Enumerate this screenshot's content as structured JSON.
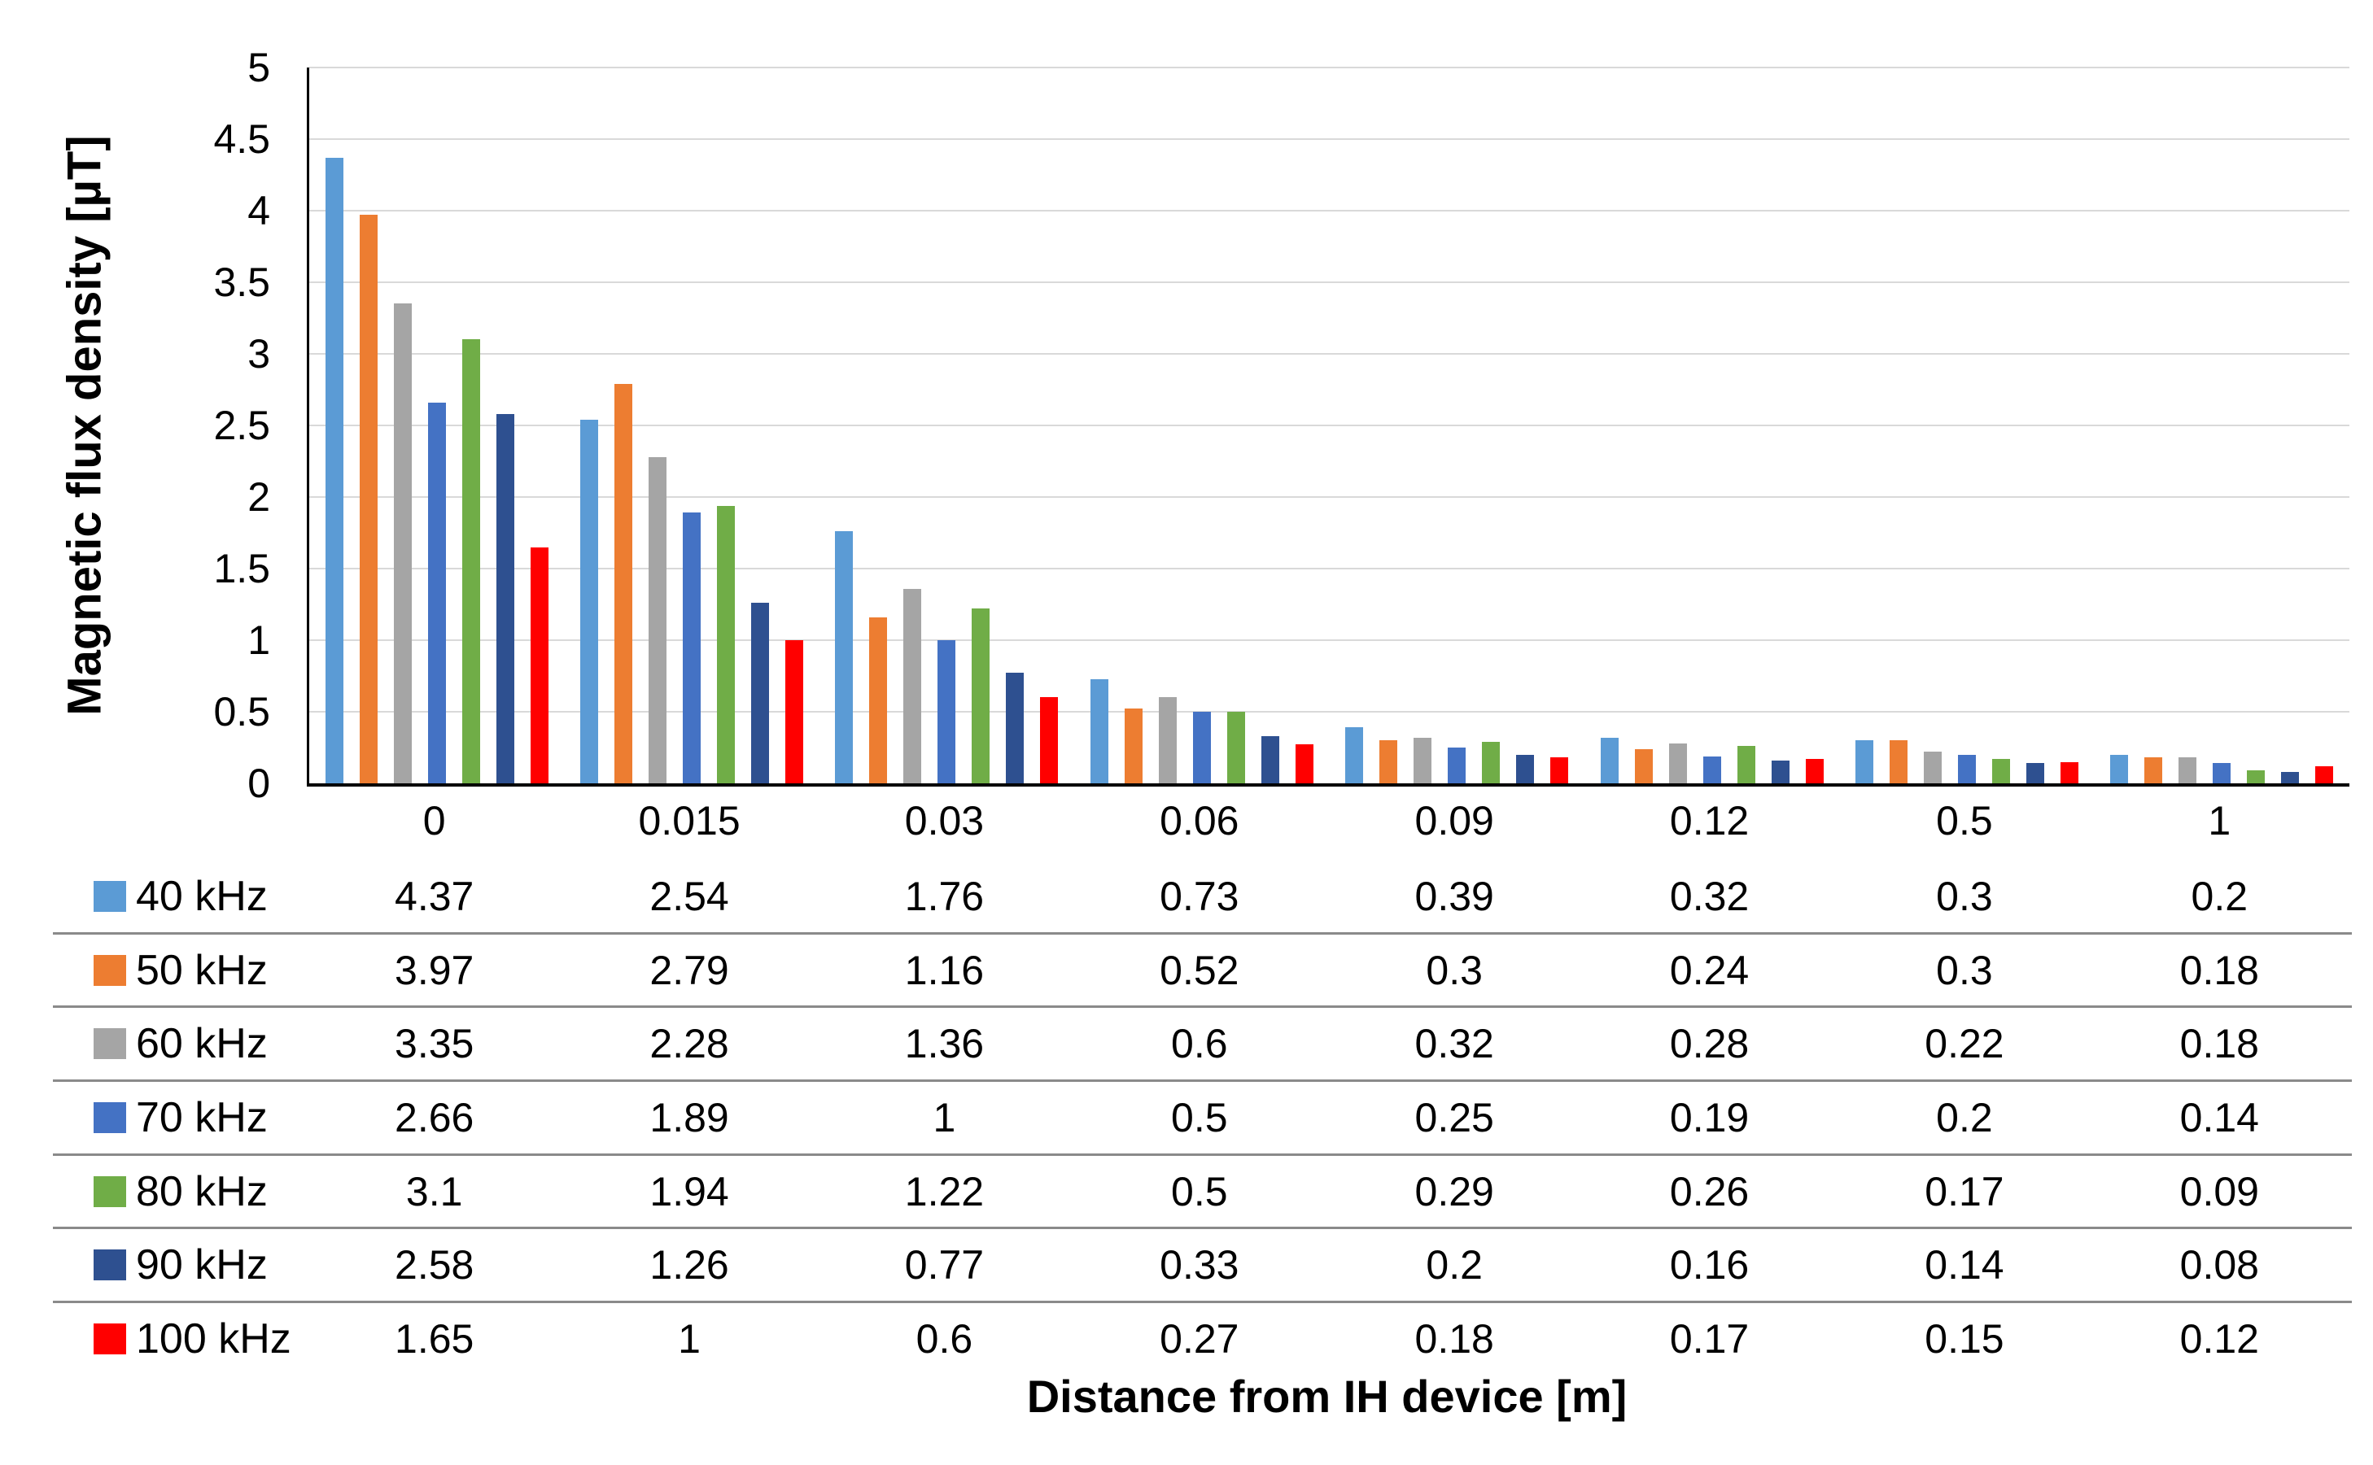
{
  "figure": {
    "y_axis_title": "Magnetic flux density [µT]",
    "x_axis_title": "Distance from IH device [m]"
  },
  "chart_data": {
    "type": "bar",
    "title": "",
    "ylabel": "Magnetic flux density [µT]",
    "xlabel": "Distance from IH device [m]",
    "ylim": [
      0,
      5
    ],
    "y_tick_step": 0.5,
    "y_tick_labels": [
      "0",
      "0.5",
      "1",
      "1.5",
      "2",
      "2.5",
      "3",
      "3.5",
      "4",
      "4.5",
      "5"
    ],
    "grid": true,
    "legend_position": "table-rows-left",
    "data_table_shown": true,
    "categories": [
      "0",
      "0.015",
      "0.03",
      "0.06",
      "0.09",
      "0.12",
      "0.5",
      "1"
    ],
    "series": [
      {
        "name": "40 kHz",
        "color": "#5b9bd5",
        "values": [
          4.37,
          2.54,
          1.76,
          0.73,
          0.39,
          0.32,
          0.3,
          0.2
        ]
      },
      {
        "name": "50 kHz",
        "color": "#ed7d31",
        "values": [
          3.97,
          2.79,
          1.16,
          0.52,
          0.3,
          0.24,
          0.3,
          0.18
        ]
      },
      {
        "name": "60 kHz",
        "color": "#a5a5a5",
        "values": [
          3.35,
          2.28,
          1.36,
          0.6,
          0.32,
          0.28,
          0.22,
          0.18
        ]
      },
      {
        "name": "70 kHz",
        "color": "#4472c4",
        "values": [
          2.66,
          1.89,
          1,
          0.5,
          0.25,
          0.19,
          0.2,
          0.14
        ]
      },
      {
        "name": "80 kHz",
        "color": "#70ad47",
        "values": [
          3.1,
          1.94,
          1.22,
          0.5,
          0.29,
          0.26,
          0.17,
          0.09
        ]
      },
      {
        "name": "90 kHz",
        "color": "#2e5090",
        "values": [
          2.58,
          1.26,
          0.77,
          0.33,
          0.2,
          0.16,
          0.14,
          0.08
        ]
      },
      {
        "name": "100 kHz",
        "color": "#ff0000",
        "values": [
          1.65,
          1,
          0.6,
          0.27,
          0.18,
          0.17,
          0.15,
          0.12
        ]
      }
    ]
  },
  "colors": {
    "gridline": "#d9d9d9",
    "axis_line": "#000000",
    "table_separator": "#8a8a8a",
    "text": "#000000",
    "background": "#ffffff"
  }
}
